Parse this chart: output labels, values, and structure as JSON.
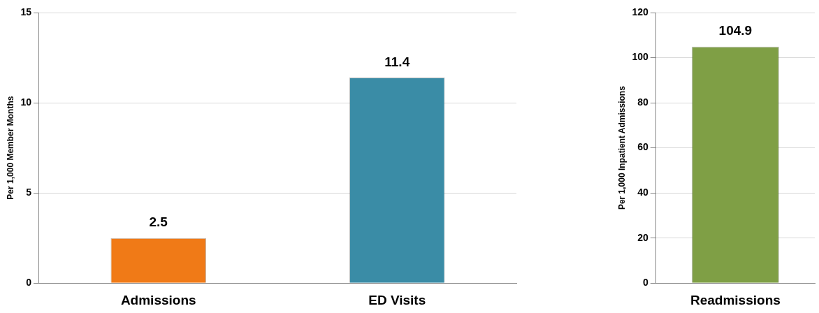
{
  "chart_data": [
    {
      "type": "bar",
      "ylabel": "Per 1,000 Member Months",
      "categories": [
        "Admissions",
        "ED Visits"
      ],
      "values": [
        2.5,
        11.4
      ],
      "colors": [
        "#f07a17",
        "#3a8ca6"
      ],
      "ylim": [
        0,
        15
      ],
      "yticks": [
        0,
        5,
        10,
        15
      ],
      "grid": "y",
      "data_labels": true
    },
    {
      "type": "bar",
      "ylabel": "Per 1,000 Inpatient Admissions",
      "categories": [
        "Readmissions"
      ],
      "values": [
        104.9
      ],
      "colors": [
        "#7f9f45"
      ],
      "ylim": [
        0,
        120
      ],
      "yticks": [
        0,
        20,
        40,
        60,
        80,
        100,
        120
      ],
      "grid": "y",
      "data_labels": true
    }
  ]
}
